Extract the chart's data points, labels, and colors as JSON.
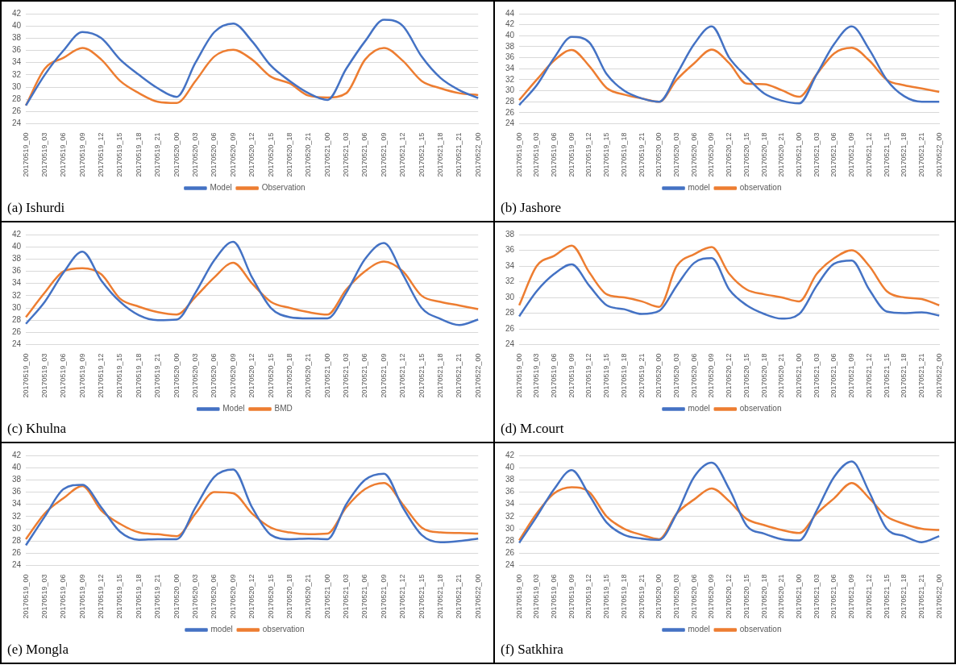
{
  "chart_data": [
    {
      "type": "line",
      "title": "(a) Ishurdi",
      "categories": [
        "20170519_00",
        "20170519_03",
        "20170519_06",
        "20170519_09",
        "20170519_12",
        "20170519_15",
        "20170519_18",
        "20170519_21",
        "20170520_00",
        "20170520_03",
        "20170520_06",
        "20170520_09",
        "20170520_12",
        "20170520_15",
        "20170520_18",
        "20170520_21",
        "20170521_00",
        "20170521_03",
        "20170521_06",
        "20170521_09",
        "20170521_12",
        "20170521_15",
        "20170521_18",
        "20170521_21",
        "20170522_00"
      ],
      "series": [
        {
          "name": "Model",
          "color": "#4472c4",
          "values": [
            27,
            32,
            36,
            39,
            38,
            34.5,
            32,
            29.8,
            28.4,
            34,
            39,
            40.4,
            37.5,
            33.5,
            31,
            29,
            27.9,
            33,
            37.5,
            41,
            40,
            35,
            31.5,
            29.5,
            28.2
          ]
        },
        {
          "name": "Observation",
          "color": "#ed7d31",
          "values": [
            27,
            33,
            34.8,
            36.4,
            34.5,
            31,
            29,
            27.6,
            27.4,
            31,
            35,
            36.1,
            34.5,
            31.7,
            30.6,
            28.6,
            28.3,
            29,
            34.5,
            36.4,
            34.3,
            31,
            29.8,
            29,
            28.7
          ]
        }
      ],
      "ylim": [
        24,
        42
      ],
      "yticks": [
        24,
        26,
        28,
        30,
        32,
        34,
        36,
        38,
        40,
        42
      ],
      "grid": "y",
      "legend": "bottom",
      "marker": "none"
    },
    {
      "type": "line",
      "title": "(b) Jashore",
      "categories": [
        "20170519_00",
        "20170519_03",
        "20170519_06",
        "20170519_09",
        "20170519_12",
        "20170519_15",
        "20170519_18",
        "20170519_21",
        "20170520_00",
        "20170520_03",
        "20170520_06",
        "20170520_09",
        "20170520_12",
        "20170520_15",
        "20170520_18",
        "20170520_21",
        "20170521_00",
        "20170521_03",
        "20170521_06",
        "20170521_09",
        "20170521_12",
        "20170521_15",
        "20170521_18",
        "20170521_21",
        "20170522_00"
      ],
      "series": [
        {
          "name": "model",
          "color": "#4472c4",
          "values": [
            27.4,
            31,
            36,
            39.8,
            38.8,
            33,
            30,
            28.6,
            28,
            33,
            38.5,
            41.7,
            36,
            32.5,
            29.5,
            28.2,
            27.7,
            33,
            38.5,
            41.7,
            37.5,
            32,
            29,
            28,
            28
          ]
        },
        {
          "name": "observation",
          "color": "#ed7d31",
          "values": [
            28.3,
            32,
            35.5,
            37.4,
            34.5,
            30.5,
            29.3,
            28.6,
            28,
            32,
            35,
            37.5,
            35,
            31.3,
            31.2,
            30.1,
            28.9,
            33,
            36.8,
            37.8,
            35.5,
            32,
            31,
            30.4,
            29.8
          ]
        }
      ],
      "ylim": [
        24,
        44
      ],
      "yticks": [
        24,
        26,
        28,
        30,
        32,
        34,
        36,
        38,
        40,
        42,
        44
      ],
      "grid": "y",
      "legend": "bottom",
      "marker": "none"
    },
    {
      "type": "line",
      "title": "(c) Khulna",
      "categories": [
        "20170519_00",
        "20170519_03",
        "20170519_06",
        "20170519_09",
        "20170519_12",
        "20170519_15",
        "20170519_18",
        "20170519_21",
        "20170520_00",
        "20170520_03",
        "20170520_06",
        "20170520_09",
        "20170520_12",
        "20170520_15",
        "20170520_18",
        "20170520_21",
        "20170521_00",
        "20170521_03",
        "20170521_06",
        "20170521_09",
        "20170521_12",
        "20170521_15",
        "20170521_18",
        "20170521_21",
        "20170522_00"
      ],
      "series": [
        {
          "name": "Model",
          "color": "#4472c4",
          "values": [
            27.4,
            31,
            35.8,
            39.2,
            34.5,
            31,
            28.8,
            28,
            28.1,
            32.5,
            37.8,
            40.8,
            35,
            30,
            28.5,
            28.3,
            28.3,
            32.5,
            38,
            40.6,
            35.5,
            30,
            28.2,
            27.2,
            28.1
          ]
        },
        {
          "name": "BMD",
          "color": "#ed7d31",
          "values": [
            28.5,
            32.5,
            36,
            36.5,
            35.5,
            31.5,
            30.2,
            29.3,
            28.9,
            31.8,
            35,
            37.4,
            34,
            31,
            30,
            29.3,
            28.9,
            33,
            36,
            37.6,
            36,
            32,
            31,
            30.4,
            29.8
          ]
        }
      ],
      "ylim": [
        24,
        42
      ],
      "yticks": [
        24,
        26,
        28,
        30,
        32,
        34,
        36,
        38,
        40,
        42
      ],
      "grid": "y",
      "legend": "bottom",
      "marker": "none"
    },
    {
      "type": "line",
      "title": "(d) M.court",
      "categories": [
        "20170519_00",
        "20170519_03",
        "20170519_06",
        "20170519_09",
        "20170519_12",
        "20170519_15",
        "20170519_18",
        "20170519_21",
        "20170520_00",
        "20170520_03",
        "20170520_06",
        "20170520_09",
        "20170520_12",
        "20170520_15",
        "20170520_18",
        "20170520_21",
        "20170521_00",
        "20170521_03",
        "20170521_06",
        "20170521_09",
        "20170521_12",
        "20170521_15",
        "20170521_18",
        "20170521_21",
        "20170522_00"
      ],
      "series": [
        {
          "name": "model",
          "color": "#4472c4",
          "values": [
            27.6,
            30.8,
            33,
            34.2,
            31.5,
            29,
            28.5,
            27.9,
            28.3,
            31.5,
            34.4,
            35,
            31,
            29,
            27.9,
            27.3,
            27.9,
            31.5,
            34.3,
            34.7,
            31,
            28.2,
            28,
            28.1,
            27.7
          ]
        },
        {
          "name": "observation",
          "color": "#ed7d31",
          "values": [
            29,
            34,
            35.3,
            36.6,
            33.2,
            30.4,
            30,
            29.5,
            28.8,
            34,
            35.5,
            36.4,
            33,
            31,
            30.4,
            30,
            29.5,
            33,
            35,
            36,
            34,
            30.8,
            30,
            29.8,
            29
          ]
        }
      ],
      "ylim": [
        24,
        38
      ],
      "yticks": [
        24,
        26,
        28,
        30,
        32,
        34,
        36,
        38
      ],
      "grid": "y",
      "legend": "bottom",
      "marker": "none"
    },
    {
      "type": "line",
      "title": "(e) Mongla",
      "categories": [
        "20170519_00",
        "20170519_03",
        "20170519_06",
        "20170519_09",
        "20170519_12",
        "20170519_15",
        "20170519_18",
        "20170519_21",
        "20170520_00",
        "20170520_03",
        "20170520_06",
        "20170520_09",
        "20170520_12",
        "20170520_15",
        "20170520_18",
        "20170520_21",
        "20170521_00",
        "20170521_03",
        "20170521_06",
        "20170521_09",
        "20170521_12",
        "20170521_15",
        "20170521_18",
        "20170521_21",
        "20170522_00"
      ],
      "series": [
        {
          "name": "model",
          "color": "#4472c4",
          "values": [
            27.3,
            32,
            36.5,
            37.2,
            33.5,
            29.5,
            28.2,
            28.3,
            28.3,
            33.5,
            38.5,
            39.7,
            33.5,
            29,
            28.3,
            28.4,
            28.3,
            34,
            38,
            39,
            33.5,
            29,
            27.8,
            28,
            28.4
          ]
        },
        {
          "name": "observation",
          "color": "#ed7d31",
          "values": [
            28.3,
            32.5,
            35,
            37,
            33,
            30.8,
            29.4,
            29.1,
            28.8,
            32.5,
            36,
            35.8,
            32.5,
            30.2,
            29.4,
            29.1,
            29.2,
            33.5,
            36.5,
            37.5,
            34,
            30.2,
            29.4,
            29.3,
            29.2
          ]
        }
      ],
      "ylim": [
        24,
        42
      ],
      "yticks": [
        24,
        26,
        28,
        30,
        32,
        34,
        36,
        38,
        40,
        42
      ],
      "grid": "y",
      "legend": "bottom",
      "marker": "none"
    },
    {
      "type": "line",
      "title": "(f) Satkhira",
      "categories": [
        "20170519_00",
        "20170519_03",
        "20170519_06",
        "20170519_09",
        "20170519_12",
        "20170519_15",
        "20170519_18",
        "20170519_21",
        "20170520_00",
        "20170520_03",
        "20170520_06",
        "20170520_09",
        "20170520_12",
        "20170520_15",
        "20170520_18",
        "20170520_21",
        "20170521_00",
        "20170521_03",
        "20170521_06",
        "20170521_09",
        "20170521_12",
        "20170521_15",
        "20170521_18",
        "20170521_21",
        "20170522_00"
      ],
      "series": [
        {
          "name": "model",
          "color": "#4472c4",
          "values": [
            27.7,
            32,
            36.5,
            39.6,
            35.5,
            31,
            29,
            28.4,
            28.2,
            32.5,
            38.5,
            40.8,
            36.5,
            30.5,
            29.2,
            28.3,
            28.1,
            33,
            38.5,
            41,
            36,
            30,
            28.8,
            27.8,
            28.8
          ]
        },
        {
          "name": "observation",
          "color": "#ed7d31",
          "values": [
            28.1,
            32.5,
            35.8,
            36.8,
            36,
            32,
            30,
            29,
            28.3,
            32.5,
            34.8,
            36.6,
            34.5,
            31.6,
            30.6,
            29.8,
            29.3,
            32.5,
            35,
            37.5,
            35,
            32,
            30.8,
            30,
            29.8
          ]
        }
      ],
      "ylim": [
        24,
        42
      ],
      "yticks": [
        24,
        26,
        28,
        30,
        32,
        34,
        36,
        38,
        40,
        42
      ],
      "grid": "y",
      "legend": "bottom",
      "marker": "none"
    }
  ]
}
